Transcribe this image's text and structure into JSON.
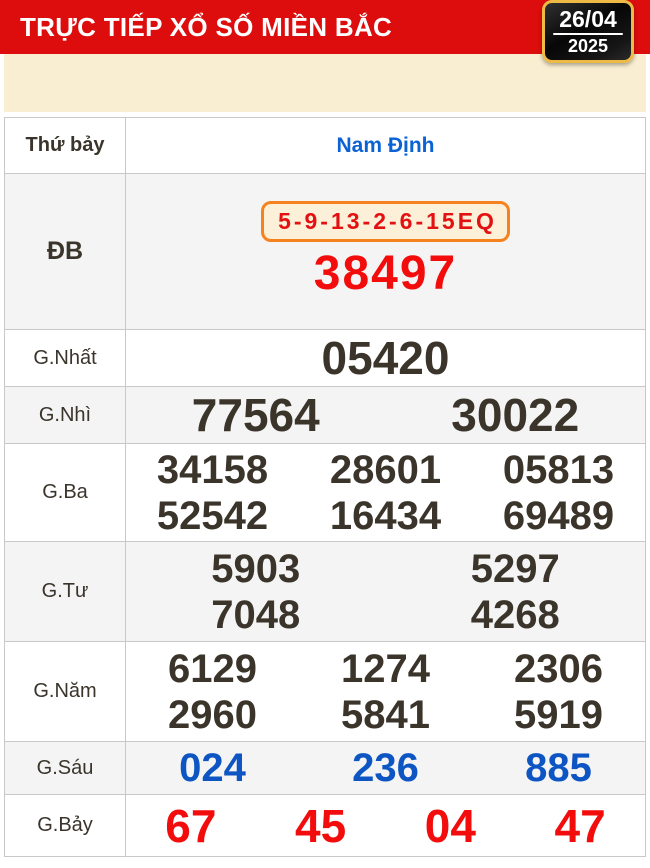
{
  "colors": {
    "header_red": "#dd0d0d",
    "cream_band": "#faeed2",
    "badge_border_gold": "#ecba45",
    "badge_background": "#111111",
    "table_border": "#c8c8c8",
    "alt_row_background": "#f4f4f4",
    "dark_number": "#3a342b",
    "red_number": "#f20c0c",
    "province_blue": "#0a62d4",
    "six_blue": "#0d55c3",
    "special_box_border_orange": "#f6821f",
    "special_box_background": "#fcf0d8"
  },
  "header": {
    "title": "TRỰC TIẾP XỔ SỐ MIỀN BẮC",
    "date": {
      "day_month": "26/04",
      "year": "2025"
    }
  },
  "result_table": {
    "weekday": "Thứ bảy",
    "province": "Nam Định",
    "special": {
      "label": "ĐB",
      "code": "5-9-13-2-6-15EQ",
      "number": "38497"
    },
    "prizes": [
      {
        "label": "G.Nhất",
        "lines": [
          [
            "05420"
          ]
        ]
      },
      {
        "label": "G.Nhì",
        "lines": [
          [
            "77564",
            "30022"
          ]
        ]
      },
      {
        "label": "G.Ba",
        "lines": [
          [
            "34158",
            "28601",
            "05813"
          ],
          [
            "52542",
            "16434",
            "69489"
          ]
        ]
      },
      {
        "label": "G.Tư",
        "lines": [
          [
            "5903",
            "5297"
          ],
          [
            "7048",
            "4268"
          ]
        ]
      },
      {
        "label": "G.Năm",
        "lines": [
          [
            "6129",
            "1274",
            "2306"
          ],
          [
            "2960",
            "5841",
            "5919"
          ]
        ]
      },
      {
        "label": "G.Sáu",
        "lines": [
          [
            "024",
            "236",
            "885"
          ]
        ]
      },
      {
        "label": "G.Bảy",
        "lines": [
          [
            "67",
            "45",
            "04",
            "47"
          ]
        ]
      }
    ]
  }
}
